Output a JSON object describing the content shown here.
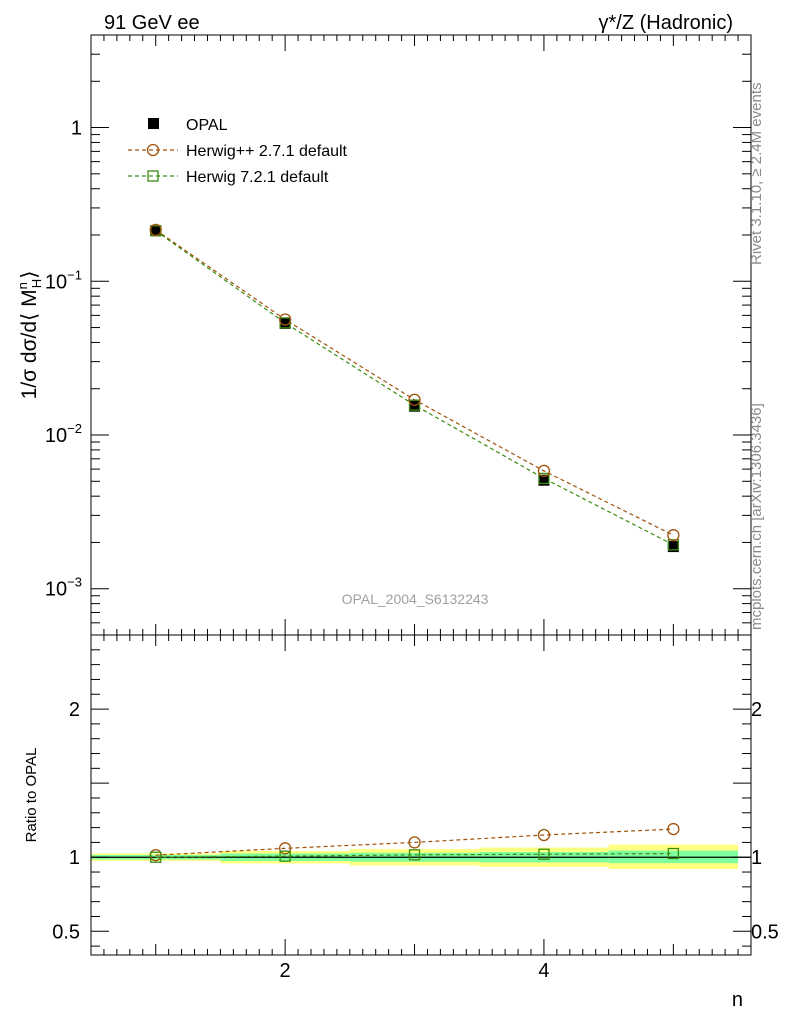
{
  "header": {
    "left": "91 GeV ee",
    "right": "γ*/Z (Hadronic)"
  },
  "side": {
    "rivet": "Rivet 3.1.10, ≥ 2.4M events",
    "mcplots": "mcplots.cern.ch [arXiv:1306.3436]"
  },
  "watermark": "OPAL_2004_S6132243",
  "colors": {
    "data": "#000000",
    "herwigpp": "#a0520a",
    "herwig7": "#3a8c10",
    "band_inner": "#80ff9f",
    "band_outer": "#ffff80"
  },
  "chart_data": [
    {
      "type": "line",
      "ylabel": "1/σ dσ/d⟨ M",
      "ylabel_sup": "n",
      "ylabel_sub": "H",
      "ylabel_tail": "⟩",
      "yscale": "log",
      "xlim": [
        0.5,
        5.6
      ],
      "ylim": [
        0.0005,
        4.0
      ],
      "y_ticks": [
        {
          "value": 0.001,
          "base": "10",
          "exp": "−3"
        },
        {
          "value": 0.01,
          "base": "10",
          "exp": "−2"
        },
        {
          "value": 0.1,
          "base": "10",
          "exp": "−1"
        },
        {
          "value": 1,
          "base": "1",
          "exp": ""
        }
      ],
      "x": [
        1,
        2,
        3,
        4,
        5
      ],
      "series": [
        {
          "name": "OPAL",
          "values": [
            0.213,
            0.0532,
            0.0154,
            0.00508,
            0.00188
          ],
          "marker": "square-filled"
        },
        {
          "name": "Herwig++ 2.7.1 default",
          "values": [
            0.2159,
            0.0564,
            0.01695,
            0.00584,
            0.00223
          ],
          "marker": "circle-open"
        },
        {
          "name": "Herwig 7.2.1 default",
          "values": [
            0.213,
            0.0536,
            0.01565,
            0.00522,
            0.00193
          ],
          "marker": "square-open"
        }
      ],
      "legend": "top-left"
    },
    {
      "type": "line",
      "ylabel": "Ratio to OPAL",
      "xlabel": "n",
      "xlim": [
        0.5,
        5.6
      ],
      "ylim": [
        0.34,
        2.5
      ],
      "y_ticks": [
        0.5,
        1,
        2
      ],
      "x_ticks": [
        2,
        4
      ],
      "x": [
        1,
        2,
        3,
        4,
        5
      ],
      "series": [
        {
          "name": "Herwig++ 2.7.1 default",
          "values": [
            1.014,
            1.06,
            1.1,
            1.15,
            1.19
          ]
        },
        {
          "name": "Herwig 7.2.1 default",
          "values": [
            1.0,
            1.007,
            1.016,
            1.02,
            1.025
          ]
        }
      ],
      "bands": [
        {
          "x0": 0.5,
          "x1": 1.5,
          "inner": [
            0.985,
            1.015
          ],
          "outer": [
            0.975,
            1.025
          ]
        },
        {
          "x0": 1.5,
          "x1": 2.5,
          "inner": [
            0.975,
            1.025
          ],
          "outer": [
            0.958,
            1.042
          ]
        },
        {
          "x0": 2.5,
          "x1": 3.5,
          "inner": [
            0.97,
            1.03
          ],
          "outer": [
            0.945,
            1.055
          ]
        },
        {
          "x0": 3.5,
          "x1": 4.5,
          "inner": [
            0.965,
            1.035
          ],
          "outer": [
            0.935,
            1.065
          ]
        },
        {
          "x0": 4.5,
          "x1": 5.5,
          "inner": [
            0.96,
            1.045
          ],
          "outer": [
            0.92,
            1.085
          ]
        }
      ]
    }
  ]
}
